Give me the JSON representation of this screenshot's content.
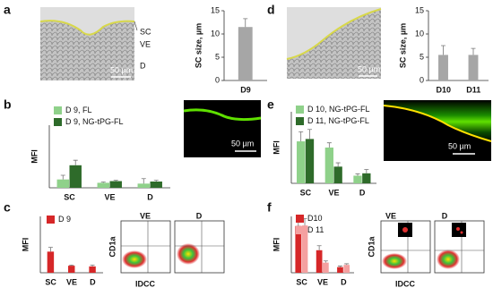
{
  "chart_data": [
    {
      "type": "bar",
      "ylabel": "SC size, µm",
      "categories": [
        "D9"
      ],
      "values": [
        11.5
      ],
      "errors": [
        1.8
      ],
      "color": "#a6a6a6",
      "ylim": [
        0,
        15
      ],
      "yticks": [
        0,
        5,
        10,
        15
      ]
    },
    {
      "type": "bar",
      "ylabel": "SC size, µm",
      "categories": [
        "D10",
        "D11"
      ],
      "values": [
        5.5,
        5.5
      ],
      "errors": [
        2.0,
        1.4
      ],
      "color": "#a6a6a6",
      "ylim": [
        0,
        15
      ],
      "yticks": [
        0,
        5,
        10,
        15
      ]
    },
    {
      "type": "bar",
      "ylabel": "MFI",
      "categories": [
        "SC",
        "VE",
        "D"
      ],
      "ylim": [
        0,
        15
      ],
      "legend": "top-left",
      "series": [
        {
          "name": "D 9, FL",
          "color": "#8fd18a",
          "values": [
            2.0,
            1.2,
            1.0
          ],
          "errors": [
            1.0,
            0.2,
            1.2
          ]
        },
        {
          "name": "D 9, NG-tPG-FL",
          "color": "#2e6b2a",
          "values": [
            5.4,
            1.6,
            1.5
          ],
          "errors": [
            1.2,
            0.2,
            0.3
          ]
        }
      ]
    },
    {
      "type": "bar",
      "ylabel": "MFI",
      "categories": [
        "SC",
        "VE",
        "D"
      ],
      "ylim": [
        0,
        15
      ],
      "legend": "top-left",
      "series": [
        {
          "name": "D 10, NG-tPG-FL",
          "color": "#8fd18a",
          "values": [
            8.8,
            7.5,
            1.6
          ],
          "errors": [
            2.0,
            1.0,
            0.4
          ]
        },
        {
          "name": "D 11, NG-tPG-FL",
          "color": "#2e6b2a",
          "values": [
            9.3,
            3.5,
            2.1
          ],
          "errors": [
            2.0,
            0.8,
            0.8
          ]
        }
      ]
    },
    {
      "type": "bar",
      "ylabel": "MFI",
      "categories": [
        "SC",
        "VE",
        "D"
      ],
      "ylim": [
        0,
        8
      ],
      "legend": "top-left",
      "series": [
        {
          "name": "D 9",
          "color": "#d62728",
          "values": [
            3.0,
            1.0,
            0.9
          ],
          "errors": [
            0.6,
            0.1,
            0.2
          ]
        }
      ]
    },
    {
      "type": "bar",
      "ylabel": "MFI",
      "categories": [
        "SC",
        "VE",
        "D"
      ],
      "ylim": [
        0,
        10
      ],
      "legend": "top-left",
      "series": [
        {
          "name": "D10",
          "color": "#d62728",
          "values": [
            8.3,
            4.0,
            1.0
          ],
          "errors": [
            1.5,
            0.8,
            0.2
          ]
        },
        {
          "name": "D 11",
          "color": "#f4a0a0",
          "values": [
            8.4,
            1.8,
            1.4
          ],
          "errors": [
            1.2,
            0.3,
            0.2
          ]
        }
      ]
    }
  ],
  "letters": [
    "a",
    "d",
    "b",
    "e",
    "c",
    "f"
  ],
  "micrographs": [
    {
      "labels": [
        "SC",
        "VE",
        "D"
      ],
      "scale": "50 µm"
    },
    {
      "scale": "50 µm"
    },
    {
      "scale": "50 µm"
    },
    {
      "scale": "50 µm"
    }
  ],
  "flow": [
    {
      "panels": [
        "VE",
        "D"
      ],
      "ylabel": "CD1a",
      "xlabel": "IDCC"
    },
    {
      "panels": [
        "VE",
        "D"
      ],
      "ylabel": "CD1a",
      "xlabel": "IDCC"
    }
  ]
}
